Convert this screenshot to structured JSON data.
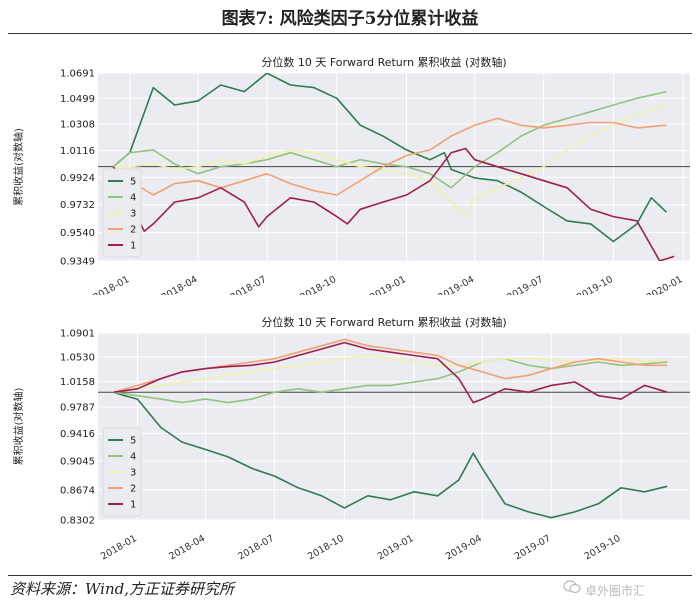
{
  "figure_title": "图表7:    风险类因子5分位累计收益",
  "source": "资料来源：Wind,方正证券研究所",
  "watermark": "卓外圈市汇",
  "colors": {
    "q5": "#2e7d4f",
    "q4": "#93c47d",
    "q3": "#f1f1a8",
    "q2": "#f3a070",
    "q1": "#9e1f4a",
    "plot_bg": "#ebebf2",
    "grid": "#ffffff",
    "baseline": "#444444"
  },
  "chart_data": [
    {
      "type": "line",
      "title": "分位数 10 天 Forward Return 累积收益 (对数轴)",
      "ylabel": "累积收益(对数轴)",
      "yscale": "log",
      "ylim": [
        0.9349,
        1.0691
      ],
      "yticks": [
        0.9349,
        0.954,
        0.9732,
        0.9924,
        1.0116,
        1.0308,
        1.0499,
        1.0691
      ],
      "yticklabels": [
        "0.9349",
        "0.9540",
        "0.9732",
        "0.9924",
        "1.0116",
        "1.0308",
        "1.0499",
        "1.0691"
      ],
      "xlim": [
        "2017-11-20",
        "2020-01-10"
      ],
      "xticks": [
        "2018-01-01",
        "2018-04-01",
        "2018-07-01",
        "2018-10-01",
        "2019-01-01",
        "2019-04-01",
        "2019-07-01",
        "2019-10-01",
        "2020-01-01"
      ],
      "xticklabels": [
        "2018-01",
        "2018-04",
        "2018-07",
        "2018-10",
        "2019-01",
        "2019-04",
        "2019-07",
        "2019-10",
        "2020-01"
      ],
      "baseline": 1.0,
      "grid": true,
      "legend_position": "lower-left",
      "legend_entries": [
        "5",
        "4",
        "3",
        "2",
        "1"
      ],
      "series": [
        {
          "name": "5",
          "color_key": "q5",
          "x": [
            "2017-12-10",
            "2018-01-01",
            "2018-02-01",
            "2018-03-01",
            "2018-04-01",
            "2018-05-01",
            "2018-06-01",
            "2018-07-01",
            "2018-08-01",
            "2018-09-01",
            "2018-10-01",
            "2018-11-01",
            "2018-12-01",
            "2019-01-01",
            "2019-02-01",
            "2019-02-20",
            "2019-03-01",
            "2019-04-01",
            "2019-05-01",
            "2019-06-01",
            "2019-07-01",
            "2019-08-01",
            "2019-09-01",
            "2019-10-01",
            "2019-11-01",
            "2019-11-20",
            "2019-12-10"
          ],
          "y": [
            1.0,
            1.01,
            1.058,
            1.045,
            1.048,
            1.06,
            1.055,
            1.069,
            1.06,
            1.058,
            1.05,
            1.03,
            1.022,
            1.012,
            1.005,
            1.01,
            0.998,
            0.992,
            0.99,
            0.982,
            0.972,
            0.962,
            0.96,
            0.948,
            0.96,
            0.978,
            0.968
          ]
        },
        {
          "name": "4",
          "color_key": "q4",
          "x": [
            "2017-12-10",
            "2018-01-01",
            "2018-02-01",
            "2018-03-01",
            "2018-04-01",
            "2018-05-01",
            "2018-06-01",
            "2018-07-01",
            "2018-08-01",
            "2018-09-01",
            "2018-10-01",
            "2018-11-01",
            "2018-12-01",
            "2019-01-01",
            "2019-02-01",
            "2019-03-01",
            "2019-04-01",
            "2019-05-01",
            "2019-06-01",
            "2019-07-01",
            "2019-08-01",
            "2019-09-01",
            "2019-10-01",
            "2019-11-01",
            "2019-12-10"
          ],
          "y": [
            1.0,
            1.01,
            1.012,
            1.002,
            0.995,
            1.0,
            1.002,
            1.005,
            1.01,
            1.005,
            1.0,
            1.005,
            1.002,
            1.0,
            0.995,
            0.985,
            1.0,
            1.01,
            1.022,
            1.03,
            1.035,
            1.04,
            1.045,
            1.05,
            1.055
          ]
        },
        {
          "name": "3",
          "color_key": "q3",
          "x": [
            "2017-12-10",
            "2018-01-01",
            "2018-02-01",
            "2018-03-01",
            "2018-04-01",
            "2018-05-01",
            "2018-06-01",
            "2018-07-01",
            "2018-08-01",
            "2018-09-01",
            "2018-10-01",
            "2018-11-01",
            "2018-12-01",
            "2019-01-01",
            "2019-02-01",
            "2019-03-01",
            "2019-03-20",
            "2019-04-01",
            "2019-05-01",
            "2019-06-01",
            "2019-07-01",
            "2019-08-01",
            "2019-09-01",
            "2019-10-01",
            "2019-11-01",
            "2019-12-10"
          ],
          "y": [
            1.0,
            1.0,
            1.002,
            0.998,
            1.0,
            1.005,
            1.002,
            1.008,
            1.012,
            1.01,
            1.005,
            1.0,
            0.998,
            0.995,
            0.99,
            0.975,
            0.965,
            0.978,
            0.985,
            0.992,
            1.0,
            1.012,
            1.022,
            1.03,
            1.038,
            1.045
          ]
        },
        {
          "name": "2",
          "color_key": "q2",
          "x": [
            "2017-12-10",
            "2018-01-01",
            "2018-02-01",
            "2018-03-01",
            "2018-04-01",
            "2018-05-01",
            "2018-06-01",
            "2018-07-01",
            "2018-08-01",
            "2018-09-01",
            "2018-10-01",
            "2018-11-01",
            "2018-12-01",
            "2019-01-01",
            "2019-02-01",
            "2019-03-01",
            "2019-04-01",
            "2019-05-01",
            "2019-06-01",
            "2019-07-01",
            "2019-08-01",
            "2019-09-01",
            "2019-10-01",
            "2019-11-01",
            "2019-12-10"
          ],
          "y": [
            1.0,
            0.99,
            0.98,
            0.988,
            0.99,
            0.985,
            0.99,
            0.995,
            0.988,
            0.983,
            0.98,
            0.99,
            1.0,
            1.008,
            1.012,
            1.022,
            1.03,
            1.035,
            1.03,
            1.028,
            1.03,
            1.032,
            1.032,
            1.028,
            1.03
          ]
        },
        {
          "name": "1",
          "color_key": "q1",
          "x": [
            "2017-12-10",
            "2018-01-01",
            "2018-01-20",
            "2018-02-01",
            "2018-03-01",
            "2018-04-01",
            "2018-05-01",
            "2018-06-01",
            "2018-06-20",
            "2018-07-01",
            "2018-08-01",
            "2018-09-01",
            "2018-10-01",
            "2018-10-15",
            "2018-11-01",
            "2018-12-01",
            "2019-01-01",
            "2019-02-01",
            "2019-03-01",
            "2019-03-20",
            "2019-04-01",
            "2019-05-01",
            "2019-06-01",
            "2019-07-01",
            "2019-08-01",
            "2019-09-01",
            "2019-10-01",
            "2019-11-01",
            "2019-12-01",
            "2019-12-20"
          ],
          "y": [
            1.0,
            0.975,
            0.955,
            0.96,
            0.975,
            0.978,
            0.985,
            0.975,
            0.958,
            0.965,
            0.978,
            0.975,
            0.965,
            0.96,
            0.97,
            0.975,
            0.98,
            0.99,
            1.01,
            1.013,
            1.005,
            1.0,
            0.995,
            0.99,
            0.985,
            0.97,
            0.965,
            0.962,
            0.935,
            0.938
          ]
        }
      ]
    },
    {
      "type": "line",
      "title": "分位数 10 天 Forward Return 累积收益 (对数轴)",
      "ylabel": "累积收益(对数轴)",
      "yscale": "log",
      "ylim": [
        0.8302,
        1.0901
      ],
      "yticks": [
        0.8302,
        0.8674,
        0.9045,
        0.9416,
        0.9787,
        1.0158,
        1.053,
        1.0901
      ],
      "yticklabels": [
        "0.8302",
        "0.8674",
        "0.9045",
        "0.9416",
        "0.9787",
        "1.0158",
        "1.0530",
        "1.0901"
      ],
      "xlim": [
        "2017-11-10",
        "2019-12-31"
      ],
      "xticks": [
        "2018-01-01",
        "2018-04-01",
        "2018-07-01",
        "2018-10-01",
        "2019-01-01",
        "2019-04-01",
        "2019-07-01",
        "2019-10-01"
      ],
      "xticklabels": [
        "2018-01",
        "2018-04",
        "2018-07",
        "2018-10",
        "2019-01",
        "2019-04",
        "2019-07",
        "2019-10"
      ],
      "baseline": 1.0,
      "grid": true,
      "legend_position": "lower-left",
      "legend_entries": [
        "5",
        "4",
        "3",
        "2",
        "1"
      ],
      "series": [
        {
          "name": "5",
          "color_key": "q5",
          "x": [
            "2017-12-01",
            "2017-12-15",
            "2018-01-01",
            "2018-02-01",
            "2018-03-01",
            "2018-04-01",
            "2018-05-01",
            "2018-06-01",
            "2018-07-01",
            "2018-08-01",
            "2018-09-01",
            "2018-10-01",
            "2018-11-01",
            "2018-12-01",
            "2019-01-01",
            "2019-02-01",
            "2019-03-01",
            "2019-03-20",
            "2019-04-01",
            "2019-05-01",
            "2019-06-01",
            "2019-07-01",
            "2019-08-01",
            "2019-09-01",
            "2019-10-01",
            "2019-11-01",
            "2019-12-01"
          ],
          "y": [
            1.0,
            0.995,
            0.99,
            0.95,
            0.93,
            0.92,
            0.91,
            0.895,
            0.885,
            0.87,
            0.86,
            0.845,
            0.86,
            0.855,
            0.865,
            0.86,
            0.88,
            0.915,
            0.895,
            0.85,
            0.84,
            0.833,
            0.84,
            0.85,
            0.87,
            0.865,
            0.872
          ]
        },
        {
          "name": "4",
          "color_key": "q4",
          "x": [
            "2017-12-01",
            "2018-01-01",
            "2018-02-01",
            "2018-03-01",
            "2018-04-01",
            "2018-05-01",
            "2018-06-01",
            "2018-07-01",
            "2018-08-01",
            "2018-09-01",
            "2018-10-01",
            "2018-11-01",
            "2018-12-01",
            "2019-01-01",
            "2019-02-01",
            "2019-03-01",
            "2019-04-01",
            "2019-05-01",
            "2019-06-01",
            "2019-07-01",
            "2019-08-01",
            "2019-09-01",
            "2019-10-01",
            "2019-11-01",
            "2019-12-01"
          ],
          "y": [
            1.0,
            0.995,
            0.99,
            0.985,
            0.99,
            0.985,
            0.99,
            1.0,
            1.005,
            1.0,
            1.005,
            1.01,
            1.01,
            1.015,
            1.02,
            1.03,
            1.045,
            1.05,
            1.04,
            1.035,
            1.04,
            1.045,
            1.04,
            1.042,
            1.045
          ]
        },
        {
          "name": "3",
          "color_key": "q3",
          "x": [
            "2017-12-01",
            "2018-01-01",
            "2018-02-01",
            "2018-03-01",
            "2018-04-01",
            "2018-05-01",
            "2018-06-01",
            "2018-07-01",
            "2018-08-01",
            "2018-09-01",
            "2018-10-01",
            "2018-11-01",
            "2018-12-01",
            "2019-01-01",
            "2019-02-01",
            "2019-03-01",
            "2019-04-01",
            "2019-05-01",
            "2019-06-01",
            "2019-07-01",
            "2019-08-01",
            "2019-09-01",
            "2019-10-01",
            "2019-11-01",
            "2019-12-01"
          ],
          "y": [
            1.0,
            1.005,
            1.01,
            1.015,
            1.02,
            1.025,
            1.03,
            1.035,
            1.04,
            1.045,
            1.05,
            1.055,
            1.05,
            1.045,
            1.04,
            1.04,
            1.045,
            1.05,
            1.05,
            1.048,
            1.045,
            1.048,
            1.05,
            1.046,
            1.048
          ]
        },
        {
          "name": "2",
          "color_key": "q2",
          "x": [
            "2017-12-01",
            "2018-01-01",
            "2018-02-01",
            "2018-03-01",
            "2018-04-01",
            "2018-05-01",
            "2018-06-01",
            "2018-07-01",
            "2018-08-01",
            "2018-09-01",
            "2018-10-01",
            "2018-11-01",
            "2018-12-01",
            "2019-01-01",
            "2019-02-01",
            "2019-03-01",
            "2019-04-01",
            "2019-05-01",
            "2019-06-01",
            "2019-07-01",
            "2019-08-01",
            "2019-09-01",
            "2019-10-01",
            "2019-11-01",
            "2019-12-01"
          ],
          "y": [
            1.0,
            1.01,
            1.02,
            1.03,
            1.035,
            1.04,
            1.045,
            1.05,
            1.06,
            1.07,
            1.08,
            1.07,
            1.065,
            1.06,
            1.055,
            1.04,
            1.03,
            1.02,
            1.025,
            1.035,
            1.045,
            1.05,
            1.045,
            1.04,
            1.04
          ]
        },
        {
          "name": "1",
          "color_key": "q1",
          "x": [
            "2017-12-01",
            "2018-01-01",
            "2018-02-01",
            "2018-03-01",
            "2018-04-01",
            "2018-05-01",
            "2018-06-01",
            "2018-07-01",
            "2018-08-01",
            "2018-09-01",
            "2018-10-01",
            "2018-11-01",
            "2018-12-01",
            "2019-01-01",
            "2019-02-01",
            "2019-03-01",
            "2019-03-20",
            "2019-04-01",
            "2019-05-01",
            "2019-06-01",
            "2019-07-01",
            "2019-08-01",
            "2019-09-01",
            "2019-10-01",
            "2019-11-01",
            "2019-12-01"
          ],
          "y": [
            1.0,
            1.005,
            1.02,
            1.03,
            1.035,
            1.038,
            1.04,
            1.045,
            1.055,
            1.065,
            1.075,
            1.065,
            1.06,
            1.055,
            1.05,
            1.02,
            0.985,
            0.99,
            1.005,
            1.0,
            1.01,
            1.015,
            0.995,
            0.99,
            1.01,
            1.0
          ]
        }
      ]
    }
  ]
}
